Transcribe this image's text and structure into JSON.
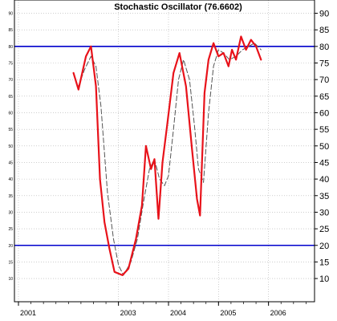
{
  "chart_data": {
    "type": "line",
    "title": "Stochastic Oscillator (76.6602)",
    "xlabel": "",
    "ylabel": "",
    "ylim": [
      3,
      94
    ],
    "xlim": [
      2000.92,
      2006.92
    ],
    "grid": true,
    "legend": "none",
    "x_tick_labels": [
      "2001",
      "2003",
      "2004",
      "2005",
      "2006"
    ],
    "x_tick_positions": [
      2001.0,
      2003.0,
      2004.0,
      2005.0,
      2006.0
    ],
    "y_ticks": [
      10,
      15,
      20,
      25,
      30,
      35,
      40,
      45,
      50,
      55,
      60,
      65,
      70,
      75,
      80,
      85,
      90
    ],
    "reference_lines": [
      {
        "value": 80,
        "color": "#0000cc"
      },
      {
        "value": 20,
        "color": "#0000cc"
      }
    ],
    "series": [
      {
        "color": "#e8121a",
        "style": "solid",
        "points": [
          [
            2002.1,
            72
          ],
          [
            2002.2,
            67
          ],
          [
            2002.35,
            77
          ],
          [
            2002.45,
            80
          ],
          [
            2002.55,
            68
          ],
          [
            2002.63,
            40
          ],
          [
            2002.72,
            27
          ],
          [
            2002.82,
            19
          ],
          [
            2002.92,
            12
          ],
          [
            2003.08,
            11
          ],
          [
            2003.2,
            13
          ],
          [
            2003.35,
            22
          ],
          [
            2003.47,
            32
          ],
          [
            2003.55,
            50
          ],
          [
            2003.65,
            43
          ],
          [
            2003.72,
            46
          ],
          [
            2003.8,
            28
          ],
          [
            2003.88,
            45
          ],
          [
            2003.98,
            57
          ],
          [
            2004.1,
            72
          ],
          [
            2004.22,
            78
          ],
          [
            2004.35,
            68
          ],
          [
            2004.47,
            49
          ],
          [
            2004.57,
            34
          ],
          [
            2004.63,
            29
          ],
          [
            2004.72,
            66
          ],
          [
            2004.8,
            76
          ],
          [
            2004.9,
            81
          ],
          [
            2005.0,
            77
          ],
          [
            2005.1,
            78
          ],
          [
            2005.2,
            74
          ],
          [
            2005.27,
            79
          ],
          [
            2005.35,
            76
          ],
          [
            2005.45,
            83
          ],
          [
            2005.55,
            79
          ],
          [
            2005.65,
            82
          ],
          [
            2005.75,
            80
          ],
          [
            2005.85,
            76
          ]
        ]
      },
      {
        "color": "#555555",
        "style": "dashed",
        "points": [
          [
            2002.2,
            68
          ],
          [
            2002.32,
            73
          ],
          [
            2002.45,
            77
          ],
          [
            2002.55,
            74
          ],
          [
            2002.65,
            62
          ],
          [
            2002.78,
            36
          ],
          [
            2002.9,
            22
          ],
          [
            2003.0,
            14
          ],
          [
            2003.1,
            11
          ],
          [
            2003.25,
            15
          ],
          [
            2003.38,
            22
          ],
          [
            2003.5,
            33
          ],
          [
            2003.62,
            43
          ],
          [
            2003.72,
            46
          ],
          [
            2003.82,
            40
          ],
          [
            2003.92,
            38
          ],
          [
            2004.0,
            41
          ],
          [
            2004.1,
            55
          ],
          [
            2004.2,
            70
          ],
          [
            2004.3,
            76
          ],
          [
            2004.42,
            70
          ],
          [
            2004.52,
            56
          ],
          [
            2004.6,
            43
          ],
          [
            2004.7,
            39
          ],
          [
            2004.8,
            60
          ],
          [
            2004.9,
            74
          ],
          [
            2005.0,
            79
          ],
          [
            2005.1,
            78
          ],
          [
            2005.22,
            76
          ],
          [
            2005.35,
            77
          ],
          [
            2005.48,
            79
          ],
          [
            2005.6,
            80
          ],
          [
            2005.72,
            81
          ],
          [
            2005.85,
            79
          ]
        ]
      }
    ]
  }
}
